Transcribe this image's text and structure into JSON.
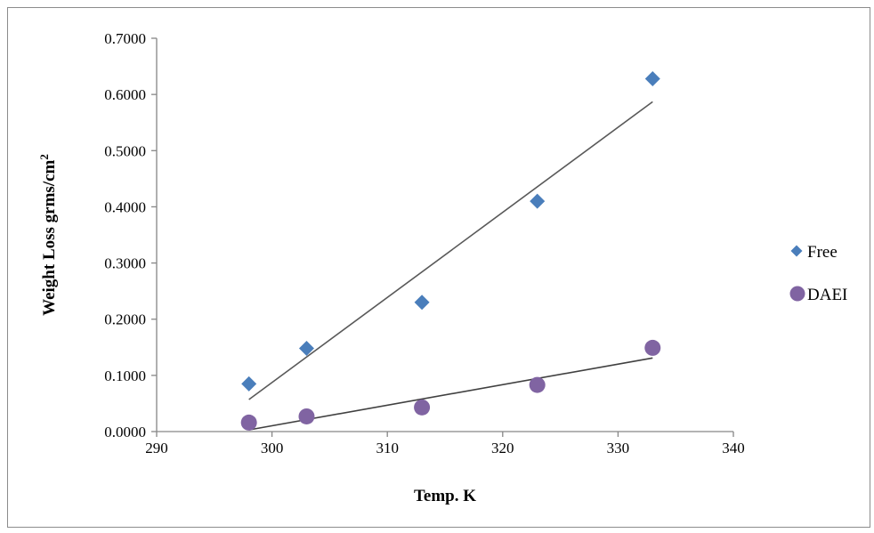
{
  "chart_data": {
    "type": "scatter",
    "title": "",
    "xlabel": "Temp.  K",
    "ylabel_main": "Weight Loss grms/cm",
    "ylabel_sup": "2",
    "xlim": [
      290,
      340
    ],
    "ylim": [
      0,
      0.7
    ],
    "xticks": [
      290,
      300,
      310,
      320,
      330,
      340
    ],
    "yticks": [
      0,
      0.1,
      0.2,
      0.3,
      0.4,
      0.5,
      0.6,
      0.7
    ],
    "ytick_labels": [
      "0.0000",
      "0.1000",
      "0.2000",
      "0.3000",
      "0.4000",
      "0.5000",
      "0.6000",
      "0.7000"
    ],
    "grid": false,
    "legend_position": "right",
    "series": [
      {
        "name": "Free",
        "marker": "diamond",
        "color": "#4a7ebb",
        "x": [
          298,
          303,
          313,
          323,
          333
        ],
        "y": [
          0.085,
          0.148,
          0.23,
          0.41,
          0.628
        ],
        "trendline": {
          "x": [
            298,
            333
          ],
          "y": [
            0.057,
            0.587
          ],
          "color": "#595959"
        }
      },
      {
        "name": "DAEI",
        "marker": "circle",
        "color": "#8064a2",
        "x": [
          298,
          303,
          313,
          323,
          333
        ],
        "y": [
          0.016,
          0.027,
          0.043,
          0.083,
          0.149
        ],
        "trendline": {
          "x": [
            298,
            333
          ],
          "y": [
            0.003,
            0.131
          ],
          "color": "#404040"
        }
      }
    ]
  }
}
